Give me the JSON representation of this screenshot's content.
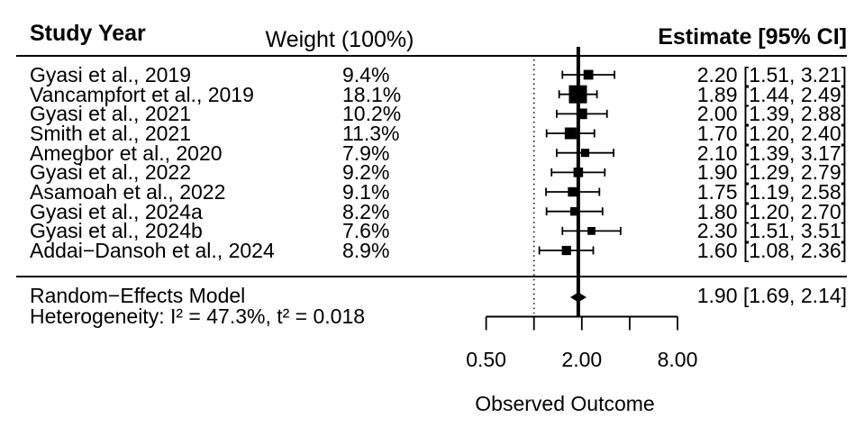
{
  "header": {
    "study_year": "Study Year",
    "weight": "Weight (100%)",
    "estimate": "Estimate [95% CI]"
  },
  "chart_data": {
    "type": "forest",
    "xlabel": "Observed Outcome",
    "x_scale": "log2",
    "xlim": [
      0.5,
      8
    ],
    "axis_ticks": [
      0.5,
      1,
      2,
      4,
      8
    ],
    "axis_tick_labels": [
      {
        "value": 0.5,
        "label": "0.50"
      },
      {
        "value": 2,
        "label": "2.00"
      },
      {
        "value": 8,
        "label": "8.00"
      }
    ],
    "reference_line": 1.0,
    "summary_line": 1.9,
    "studies": [
      {
        "label": "Gyasi et al., 2019",
        "weight_label": "9.4%",
        "weight": 9.4,
        "estimate": 2.2,
        "ci_low": 1.51,
        "ci_high": 3.21,
        "estimate_label": "2.20 [1.51, 3.21]"
      },
      {
        "label": "Vancampfort et al., 2019",
        "weight_label": "18.1%",
        "weight": 18.1,
        "estimate": 1.89,
        "ci_low": 1.44,
        "ci_high": 2.49,
        "estimate_label": "1.89 [1.44, 2.49]"
      },
      {
        "label": "Gyasi et al., 2021",
        "weight_label": "10.2%",
        "weight": 10.2,
        "estimate": 2.0,
        "ci_low": 1.39,
        "ci_high": 2.88,
        "estimate_label": "2.00 [1.39, 2.88]"
      },
      {
        "label": "Smith et al., 2021",
        "weight_label": "11.3%",
        "weight": 11.3,
        "estimate": 1.7,
        "ci_low": 1.2,
        "ci_high": 2.4,
        "estimate_label": "1.70 [1.20, 2.40]"
      },
      {
        "label": "Amegbor et al., 2020",
        "weight_label": "7.9%",
        "weight": 7.9,
        "estimate": 2.1,
        "ci_low": 1.39,
        "ci_high": 3.17,
        "estimate_label": "2.10 [1.39, 3.17]"
      },
      {
        "label": "Gyasi et al., 2022",
        "weight_label": "9.2%",
        "weight": 9.2,
        "estimate": 1.9,
        "ci_low": 1.29,
        "ci_high": 2.79,
        "estimate_label": "1.90 [1.29, 2.79]"
      },
      {
        "label": "Asamoah et al., 2022",
        "weight_label": "9.1%",
        "weight": 9.1,
        "estimate": 1.75,
        "ci_low": 1.19,
        "ci_high": 2.58,
        "estimate_label": "1.75 [1.19, 2.58]"
      },
      {
        "label": "Gyasi et al., 2024a",
        "weight_label": "8.2%",
        "weight": 8.2,
        "estimate": 1.8,
        "ci_low": 1.2,
        "ci_high": 2.7,
        "estimate_label": "1.80 [1.20, 2.70]"
      },
      {
        "label": "Gyasi et al., 2024b",
        "weight_label": "7.6%",
        "weight": 7.6,
        "estimate": 2.3,
        "ci_low": 1.51,
        "ci_high": 3.51,
        "estimate_label": "2.30 [1.51, 3.51]"
      },
      {
        "label": "Addai−Dansoh et al., 2024",
        "weight_label": "8.9%",
        "weight": 8.9,
        "estimate": 1.6,
        "ci_low": 1.08,
        "ci_high": 2.36,
        "estimate_label": "1.60 [1.08, 2.36]"
      }
    ],
    "summary": {
      "label": "Random−Effects Model",
      "heterogeneity": "Heterogeneity: I² = 47.3%, t² = 0.018",
      "estimate": 1.9,
      "ci_low": 1.69,
      "ci_high": 2.14,
      "estimate_label": "1.90 [1.69, 2.14]"
    },
    "colors": {
      "ink": "#000000",
      "background": "#ffffff"
    }
  }
}
